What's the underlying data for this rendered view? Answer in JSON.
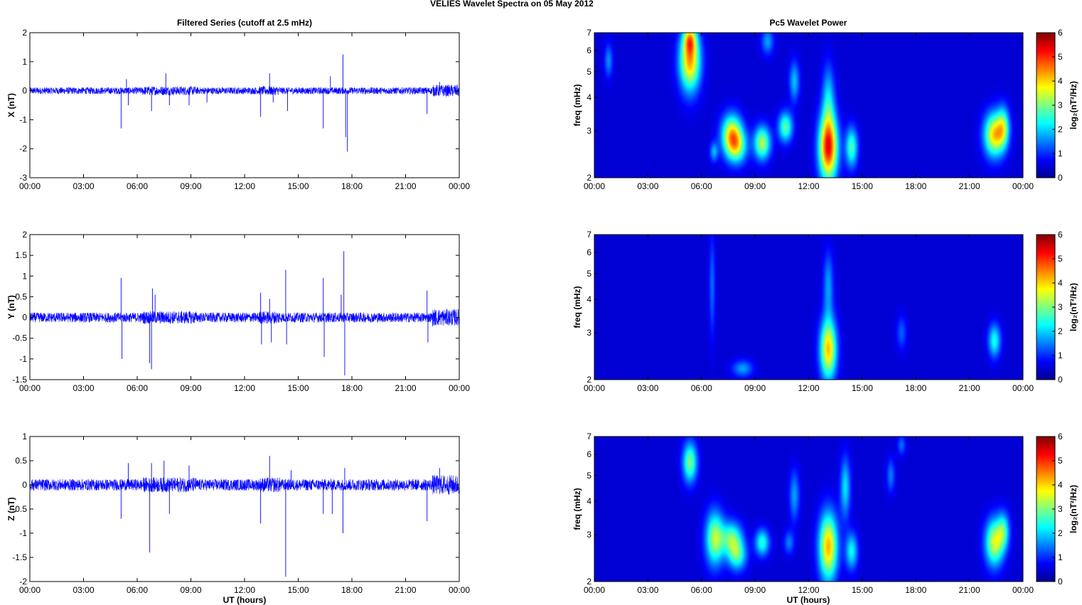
{
  "figure": {
    "title": "VELIES Wavelet Spectra on 05 May       2012",
    "left_title": "Filtered Series (cutoff at 2.5 mHz)",
    "right_title": "Pc5 Wavelet Power",
    "xlabel": "UT (hours)",
    "colorbar_label": "log₂(nT²/Hz)",
    "colorbar_ticks": [
      "0",
      "1",
      "2",
      "3",
      "4",
      "5",
      "6"
    ]
  },
  "chart_data": [
    {
      "type": "line",
      "panel": "X",
      "ylabel": "X (nT)",
      "ylim": [
        -3,
        2
      ],
      "yticks": [
        "2",
        "1",
        "0",
        "-1",
        "-2",
        "-3"
      ],
      "xticks": [
        "00:00",
        "03:00",
        "06:00",
        "09:00",
        "12:00",
        "15:00",
        "18:00",
        "21:00",
        "00:00"
      ],
      "xlim_hours": [
        0,
        24
      ],
      "line_color": "#0000ff",
      "noise_amplitude": 0.12,
      "spikes": [
        [
          5.1,
          -1.3
        ],
        [
          5.4,
          0.4
        ],
        [
          5.5,
          -0.5
        ],
        [
          6.8,
          -0.7
        ],
        [
          7.6,
          0.6
        ],
        [
          7.8,
          -0.5
        ],
        [
          8.9,
          -0.5
        ],
        [
          9.9,
          -0.4
        ],
        [
          12.9,
          -0.9
        ],
        [
          13.4,
          0.6
        ],
        [
          13.6,
          -0.4
        ],
        [
          14.4,
          -0.7
        ],
        [
          16.4,
          -1.3
        ],
        [
          16.8,
          0.5
        ],
        [
          17.5,
          1.25
        ],
        [
          17.65,
          -1.6
        ],
        [
          17.75,
          -2.1
        ],
        [
          22.2,
          -0.8
        ],
        [
          22.9,
          0.3
        ]
      ]
    },
    {
      "type": "line",
      "panel": "Y",
      "ylabel": "Y (nT)",
      "ylim": [
        -1.5,
        2
      ],
      "yticks": [
        "2",
        "1.5",
        "1",
        "0.5",
        "0",
        "-0.5",
        "-1",
        "-1.5"
      ],
      "xticks": [
        "00:00",
        "03:00",
        "06:00",
        "09:00",
        "12:00",
        "15:00",
        "18:00",
        "21:00",
        "00:00"
      ],
      "xlim_hours": [
        0,
        24
      ],
      "line_color": "#0000ff",
      "noise_amplitude": 0.12,
      "spikes": [
        [
          5.1,
          0.95
        ],
        [
          5.15,
          -1.0
        ],
        [
          6.7,
          -1.1
        ],
        [
          6.8,
          -1.25
        ],
        [
          6.85,
          0.7
        ],
        [
          7.0,
          0.55
        ],
        [
          12.9,
          0.6
        ],
        [
          12.95,
          -0.65
        ],
        [
          13.4,
          0.45
        ],
        [
          13.5,
          -0.6
        ],
        [
          14.3,
          1.15
        ],
        [
          14.35,
          -0.65
        ],
        [
          16.4,
          0.95
        ],
        [
          16.45,
          -0.95
        ],
        [
          17.4,
          0.55
        ],
        [
          17.55,
          1.6
        ],
        [
          17.6,
          -1.4
        ],
        [
          22.2,
          0.65
        ],
        [
          22.25,
          -0.6
        ]
      ]
    },
    {
      "type": "line",
      "panel": "Z",
      "ylabel": "Z (nT)",
      "ylim": [
        -2,
        1
      ],
      "yticks": [
        "1",
        "0.5",
        "0",
        "-0.5",
        "-1",
        "-1.5",
        "-2"
      ],
      "xticks": [
        "00:00",
        "03:00",
        "06:00",
        "09:00",
        "12:00",
        "15:00",
        "18:00",
        "21:00",
        "00:00"
      ],
      "xlim_hours": [
        0,
        24
      ],
      "line_color": "#0000ff",
      "noise_amplitude": 0.12,
      "spikes": [
        [
          5.1,
          -0.7
        ],
        [
          5.5,
          0.45
        ],
        [
          6.7,
          -1.4
        ],
        [
          6.8,
          0.45
        ],
        [
          7.5,
          0.5
        ],
        [
          7.8,
          -0.6
        ],
        [
          8.9,
          0.4
        ],
        [
          12.9,
          -0.8
        ],
        [
          13.4,
          0.6
        ],
        [
          14.3,
          -1.9
        ],
        [
          14.6,
          0.3
        ],
        [
          16.4,
          -0.6
        ],
        [
          16.9,
          -0.6
        ],
        [
          17.5,
          -1.0
        ],
        [
          17.6,
          0.35
        ],
        [
          22.2,
          -0.75
        ],
        [
          22.9,
          0.35
        ]
      ]
    },
    {
      "type": "heatmap",
      "panel": "X power",
      "ylabel": "freq (mHz)",
      "yscale": "log",
      "ylim": [
        2,
        7
      ],
      "yticks": [
        "2",
        "3",
        "4",
        "5",
        "6",
        "7"
      ],
      "xticks": [
        "00:00",
        "03:00",
        "06:00",
        "09:00",
        "12:00",
        "15:00",
        "18:00",
        "21:00",
        "00:00"
      ],
      "xlim_hours": [
        0,
        24
      ],
      "zlim": [
        0,
        6
      ],
      "background_value": 0.5,
      "blobs": [
        [
          5.35,
          5.5,
          3.8,
          0.1,
          0.18
        ],
        [
          5.35,
          6.6,
          2.2,
          0.06,
          0.08
        ],
        [
          7.7,
          2.9,
          3.3,
          0.1,
          0.12
        ],
        [
          8.0,
          2.6,
          2.0,
          0.1,
          0.1
        ],
        [
          9.4,
          2.7,
          2.8,
          0.08,
          0.1
        ],
        [
          10.7,
          3.1,
          2.3,
          0.07,
          0.09
        ],
        [
          13.1,
          2.6,
          4.8,
          0.09,
          0.2
        ],
        [
          13.1,
          4.0,
          1.4,
          0.06,
          0.2
        ],
        [
          14.4,
          2.6,
          2.2,
          0.06,
          0.12
        ],
        [
          22.4,
          2.9,
          3.5,
          0.1,
          0.13
        ],
        [
          22.9,
          3.1,
          2.0,
          0.06,
          0.12
        ],
        [
          0.8,
          5.5,
          1.1,
          0.04,
          0.1
        ],
        [
          9.7,
          6.5,
          1.2,
          0.06,
          0.08
        ],
        [
          11.2,
          4.6,
          1.4,
          0.05,
          0.12
        ],
        [
          6.7,
          2.5,
          1.3,
          0.04,
          0.06
        ]
      ]
    },
    {
      "type": "heatmap",
      "panel": "Y power",
      "ylabel": "freq (mHz)",
      "yscale": "log",
      "ylim": [
        2,
        7
      ],
      "yticks": [
        "2",
        "3",
        "4",
        "5",
        "6",
        "7"
      ],
      "xticks": [
        "00:00",
        "03:00",
        "06:00",
        "09:00",
        "12:00",
        "15:00",
        "18:00",
        "21:00",
        "00:00"
      ],
      "xlim_hours": [
        0,
        24
      ],
      "zlim": [
        0,
        6
      ],
      "background_value": 0.5,
      "blobs": [
        [
          13.1,
          2.6,
          3.6,
          0.08,
          0.18
        ],
        [
          13.1,
          4.5,
          1.2,
          0.05,
          0.2
        ],
        [
          22.4,
          2.8,
          1.9,
          0.06,
          0.1
        ],
        [
          8.3,
          2.2,
          1.2,
          0.1,
          0.05
        ],
        [
          6.6,
          4.5,
          0.9,
          0.03,
          0.3
        ],
        [
          17.2,
          3.0,
          0.8,
          0.05,
          0.1
        ]
      ]
    },
    {
      "type": "heatmap",
      "panel": "Z power",
      "ylabel": "freq (mHz)",
      "yscale": "log",
      "ylim": [
        2,
        7
      ],
      "yticks": [
        "2",
        "3",
        "4",
        "5",
        "6",
        "7"
      ],
      "xticks": [
        "00:00",
        "03:00",
        "06:00",
        "09:00",
        "12:00",
        "15:00",
        "18:00",
        "21:00",
        "00:00"
      ],
      "xlim_hours": [
        0,
        24
      ],
      "zlim": [
        0,
        6
      ],
      "background_value": 0.5,
      "blobs": [
        [
          5.35,
          5.6,
          2.5,
          0.07,
          0.12
        ],
        [
          6.75,
          2.9,
          2.8,
          0.09,
          0.16
        ],
        [
          7.7,
          2.9,
          2.3,
          0.1,
          0.1
        ],
        [
          8.0,
          2.5,
          2.0,
          0.09,
          0.09
        ],
        [
          9.4,
          2.8,
          2.0,
          0.07,
          0.08
        ],
        [
          13.1,
          2.7,
          3.7,
          0.09,
          0.2
        ],
        [
          14.05,
          4.5,
          1.6,
          0.05,
          0.18
        ],
        [
          14.4,
          2.6,
          1.8,
          0.06,
          0.11
        ],
        [
          22.4,
          2.8,
          3.0,
          0.09,
          0.14
        ],
        [
          22.9,
          3.1,
          1.8,
          0.06,
          0.11
        ],
        [
          11.2,
          4.2,
          1.2,
          0.05,
          0.15
        ],
        [
          16.6,
          5.0,
          1.0,
          0.04,
          0.1
        ],
        [
          17.2,
          6.5,
          0.9,
          0.04,
          0.06
        ],
        [
          10.9,
          2.8,
          1.0,
          0.05,
          0.07
        ]
      ]
    }
  ]
}
